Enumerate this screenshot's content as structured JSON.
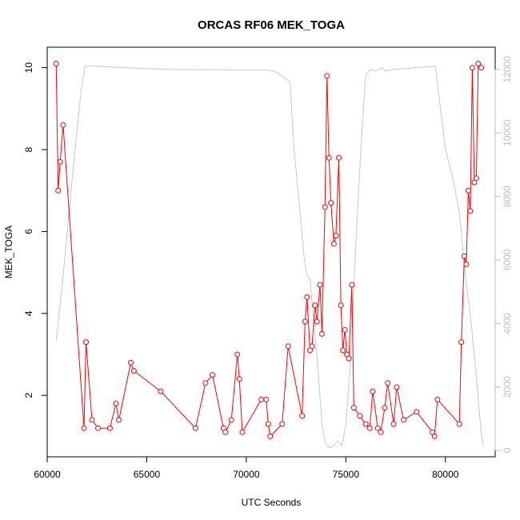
{
  "chart_data": {
    "type": "line",
    "title": "ORCAS RF06 MEK_TOGA",
    "xlabel": "UTC Seconds",
    "ylabel": "MEK_TOGA",
    "xlim": [
      60000,
      82500
    ],
    "ylim": [
      0.5,
      10.5
    ],
    "y2lim": [
      -200,
      12700
    ],
    "x_ticks": [
      60000,
      65000,
      70000,
      75000,
      80000
    ],
    "y_ticks": [
      2,
      4,
      6,
      8,
      10
    ],
    "y2_ticks": [
      0,
      2000,
      4000,
      6000,
      8000,
      10000,
      12000
    ],
    "grid": false,
    "colors": {
      "mek": "#ff0000",
      "altitude": "#c8c8c8",
      "axis": "#000000",
      "right_axis": "#bebebe"
    },
    "series": [
      {
        "axis": "left",
        "points": [
          [
            60450,
            10.1
          ],
          [
            60550,
            7.0
          ],
          [
            60650,
            7.7
          ],
          [
            60800,
            8.6
          ],
          [
            61850,
            1.2
          ],
          [
            61950,
            3.3
          ],
          [
            62250,
            1.4
          ],
          [
            62550,
            1.2
          ],
          [
            63150,
            1.2
          ],
          [
            63450,
            1.8
          ],
          [
            63600,
            1.4
          ],
          [
            64200,
            2.8
          ],
          [
            64350,
            2.6
          ],
          [
            65700,
            2.1
          ],
          [
            67450,
            1.2
          ],
          [
            67950,
            2.3
          ],
          [
            68300,
            2.5
          ],
          [
            68850,
            1.2
          ],
          [
            68950,
            1.1
          ],
          [
            69250,
            1.4
          ],
          [
            69550,
            3.0
          ],
          [
            69650,
            2.4
          ],
          [
            69800,
            1.1
          ],
          [
            70750,
            1.9
          ],
          [
            71000,
            1.9
          ],
          [
            71100,
            1.3
          ],
          [
            71200,
            1.0
          ],
          [
            71800,
            1.3
          ],
          [
            72100,
            3.2
          ],
          [
            72800,
            1.5
          ],
          [
            72950,
            3.8
          ],
          [
            73050,
            4.4
          ],
          [
            73200,
            3.1
          ],
          [
            73300,
            3.2
          ],
          [
            73450,
            4.2
          ],
          [
            73550,
            3.8
          ],
          [
            73700,
            4.7
          ],
          [
            73800,
            3.5
          ],
          [
            73950,
            6.6
          ],
          [
            74050,
            9.8
          ],
          [
            74150,
            7.8
          ],
          [
            74250,
            6.7
          ],
          [
            74400,
            5.7
          ],
          [
            74500,
            5.9
          ],
          [
            74650,
            7.8
          ],
          [
            74750,
            4.2
          ],
          [
            74850,
            3.1
          ],
          [
            74950,
            3.6
          ],
          [
            75050,
            3.0
          ],
          [
            75150,
            2.9
          ],
          [
            75300,
            4.7
          ],
          [
            75400,
            1.7
          ],
          [
            75700,
            1.5
          ],
          [
            76000,
            1.3
          ],
          [
            76200,
            1.2
          ],
          [
            76350,
            2.1
          ],
          [
            76600,
            1.2
          ],
          [
            76750,
            1.1
          ],
          [
            76950,
            1.7
          ],
          [
            77100,
            2.3
          ],
          [
            77400,
            1.3
          ],
          [
            77550,
            2.2
          ],
          [
            77900,
            1.4
          ],
          [
            78550,
            1.6
          ],
          [
            79350,
            1.1
          ],
          [
            79450,
            1.0
          ],
          [
            79600,
            1.9
          ],
          [
            80700,
            1.3
          ],
          [
            80800,
            3.3
          ],
          [
            80950,
            5.4
          ],
          [
            81050,
            5.2
          ],
          [
            81150,
            7.0
          ],
          [
            81250,
            6.5
          ],
          [
            81350,
            10.0
          ],
          [
            81450,
            7.2
          ],
          [
            81550,
            7.3
          ],
          [
            81650,
            10.1
          ],
          [
            81800,
            10.0
          ]
        ]
      },
      {
        "axis": "right",
        "points": [
          [
            60450,
            3450
          ],
          [
            60800,
            5500
          ],
          [
            61100,
            7500
          ],
          [
            61400,
            9500
          ],
          [
            61700,
            11300
          ],
          [
            61900,
            12100
          ],
          [
            62500,
            12100
          ],
          [
            64000,
            12050
          ],
          [
            66000,
            12000
          ],
          [
            70000,
            11980
          ],
          [
            71000,
            11980
          ],
          [
            71400,
            11950
          ],
          [
            71800,
            11800
          ],
          [
            72200,
            11600
          ],
          [
            72400,
            9500
          ],
          [
            72700,
            7500
          ],
          [
            72900,
            6100
          ],
          [
            73050,
            5500
          ],
          [
            73200,
            5400
          ],
          [
            73400,
            4000
          ],
          [
            73600,
            2600
          ],
          [
            73800,
            800
          ],
          [
            74000,
            200
          ],
          [
            74200,
            80
          ],
          [
            74400,
            150
          ],
          [
            74600,
            300
          ],
          [
            74800,
            150
          ],
          [
            75000,
            800
          ],
          [
            75200,
            2500
          ],
          [
            75500,
            6500
          ],
          [
            75800,
            10000
          ],
          [
            76000,
            11800
          ],
          [
            76200,
            12000
          ],
          [
            76500,
            11950
          ],
          [
            76800,
            12050
          ],
          [
            77000,
            11950
          ],
          [
            77400,
            12000
          ],
          [
            78500,
            12050
          ],
          [
            79500,
            12100
          ],
          [
            79700,
            11000
          ],
          [
            80000,
            9500
          ],
          [
            80400,
            8500
          ],
          [
            80700,
            7500
          ],
          [
            81000,
            5500
          ],
          [
            81300,
            4000
          ],
          [
            81600,
            2000
          ],
          [
            81800,
            500
          ],
          [
            81900,
            150
          ]
        ]
      }
    ]
  }
}
